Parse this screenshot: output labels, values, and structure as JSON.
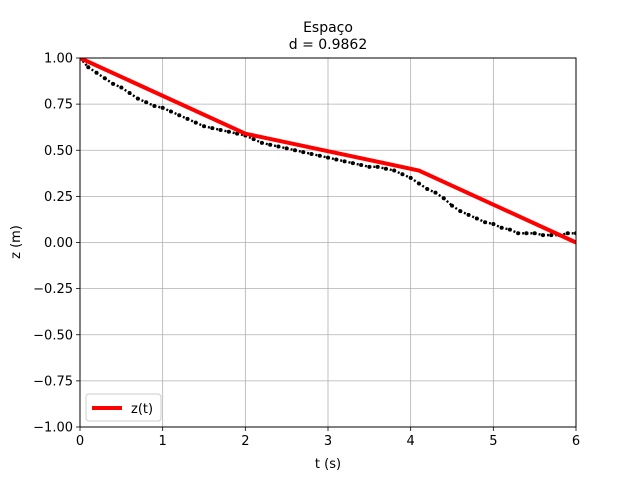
{
  "chart_data": {
    "type": "line",
    "title": "Espaço",
    "subtitle": "d = 0.9862",
    "xlabel": "t (s)",
    "ylabel": "z (m)",
    "xlim": [
      0,
      6
    ],
    "ylim": [
      -1.0,
      1.0
    ],
    "grid": true,
    "legend_placement": "lower-left",
    "x_ticks": [
      0,
      1,
      2,
      3,
      4,
      5,
      6
    ],
    "x_tick_labels": [
      "0",
      "1",
      "2",
      "3",
      "4",
      "5",
      "6"
    ],
    "y_ticks": [
      1.0,
      0.75,
      0.5,
      0.25,
      0.0,
      -0.25,
      -0.5,
      -0.75,
      -1.0
    ],
    "y_tick_labels": [
      "1.00",
      "0.75",
      "0.50",
      "0.25",
      "0.00",
      "−0.25",
      "−0.50",
      "−0.75",
      "−1.00"
    ],
    "series": [
      {
        "name": "z(t)",
        "kind": "line",
        "color": "#ff0000",
        "x": [
          0.0,
          2.0,
          4.1,
          6.0
        ],
        "y": [
          1.0,
          0.59,
          0.39,
          0.0
        ]
      },
      {
        "kind": "scatter",
        "color": "#000000",
        "x": [
          0.0,
          0.1,
          0.2,
          0.3,
          0.4,
          0.5,
          0.6,
          0.7,
          0.8,
          0.9,
          1.0,
          1.1,
          1.2,
          1.3,
          1.4,
          1.5,
          1.6,
          1.7,
          1.8,
          1.9,
          2.0,
          2.1,
          2.2,
          2.3,
          2.4,
          2.5,
          2.6,
          2.7,
          2.8,
          2.9,
          3.0,
          3.1,
          3.2,
          3.3,
          3.4,
          3.5,
          3.6,
          3.7,
          3.8,
          3.9,
          4.0,
          4.1,
          4.2,
          4.3,
          4.4,
          4.5,
          4.6,
          4.7,
          4.8,
          4.9,
          5.0,
          5.1,
          5.2,
          5.3,
          5.4,
          5.5,
          5.6,
          5.7,
          5.8,
          5.9,
          6.0
        ],
        "y": [
          1.0,
          0.95,
          0.92,
          0.89,
          0.86,
          0.84,
          0.81,
          0.78,
          0.76,
          0.74,
          0.73,
          0.71,
          0.69,
          0.67,
          0.65,
          0.63,
          0.62,
          0.61,
          0.6,
          0.59,
          0.58,
          0.56,
          0.54,
          0.53,
          0.52,
          0.51,
          0.5,
          0.49,
          0.48,
          0.47,
          0.46,
          0.45,
          0.44,
          0.43,
          0.42,
          0.41,
          0.41,
          0.4,
          0.39,
          0.37,
          0.35,
          0.32,
          0.29,
          0.27,
          0.24,
          0.2,
          0.17,
          0.15,
          0.13,
          0.11,
          0.1,
          0.08,
          0.07,
          0.05,
          0.05,
          0.05,
          0.04,
          0.04,
          0.04,
          0.05,
          0.05
        ]
      }
    ]
  }
}
